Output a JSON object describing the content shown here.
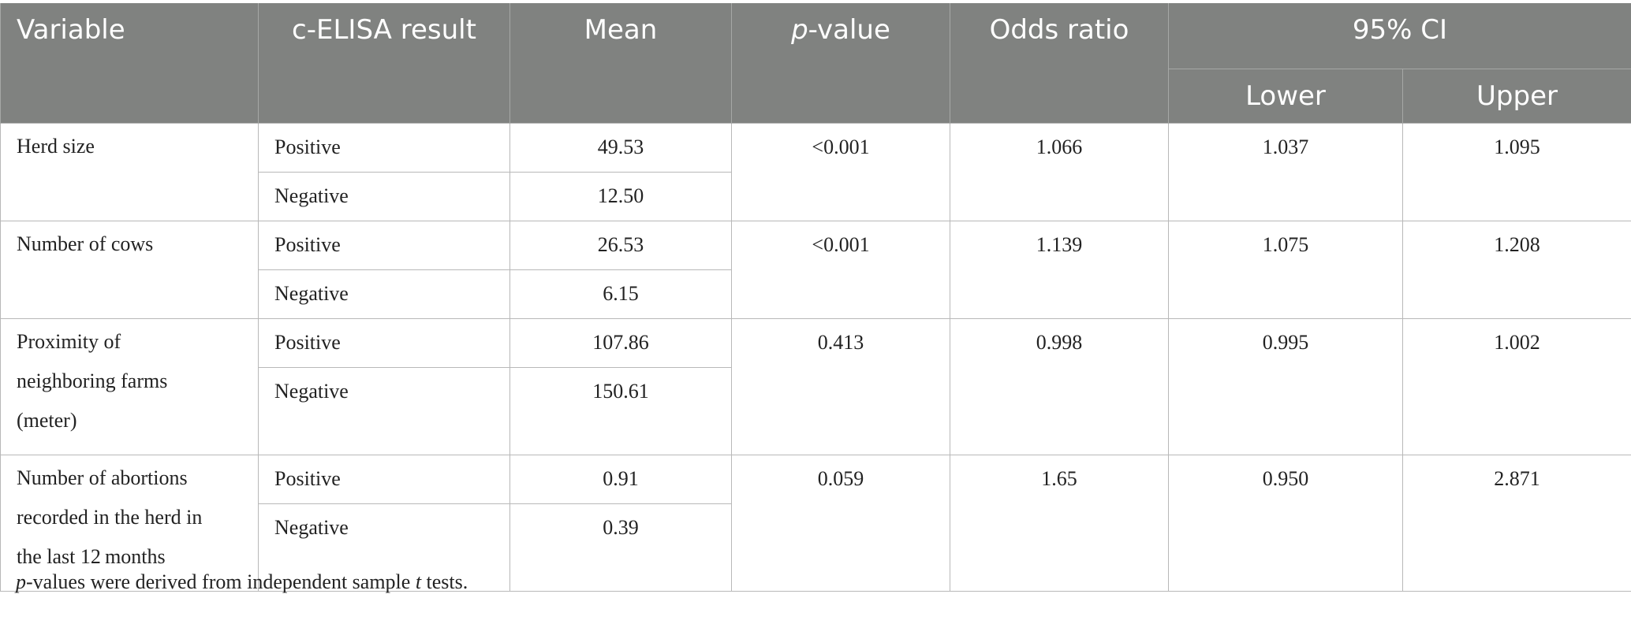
{
  "header": {
    "variable": "Variable",
    "result": "c-ELISA result",
    "mean": "Mean",
    "pvalue_italic": "p",
    "pvalue_rest": "-value",
    "odds": "Odds ratio",
    "ci": "95% CI",
    "lower": "Lower",
    "upper": "Upper"
  },
  "rows": [
    {
      "variable": [
        "Herd size"
      ],
      "positive_label": "Positive",
      "positive_mean": "49.53",
      "negative_label": "Negative",
      "negative_mean": "12.50",
      "pvalue": "<0.001",
      "odds": "1.066",
      "lower": "1.037",
      "upper": "1.095"
    },
    {
      "variable": [
        "Number of cows"
      ],
      "positive_label": "Positive",
      "positive_mean": "26.53",
      "negative_label": "Negative",
      "negative_mean": "6.15",
      "pvalue": "<0.001",
      "odds": "1.139",
      "lower": "1.075",
      "upper": "1.208"
    },
    {
      "variable": [
        "Proximity of",
        "neighboring farms",
        "(meter)"
      ],
      "positive_label": "Positive",
      "positive_mean": "107.86",
      "negative_label": "Negative",
      "negative_mean": "150.61",
      "pvalue": "0.413",
      "odds": "0.998",
      "lower": "0.995",
      "upper": "1.002"
    },
    {
      "variable": [
        "Number of abortions",
        "recorded in the herd in",
        "the last 12 months"
      ],
      "positive_label": "Positive",
      "positive_mean": "0.91",
      "negative_label": "Negative",
      "negative_mean": "0.39",
      "pvalue": "0.059",
      "odds": "1.65",
      "lower": "0.950",
      "upper": "2.871"
    }
  ],
  "footnote": {
    "p": "p",
    "mid": "-values were derived from independent sample ",
    "t": "t",
    "end": " tests."
  }
}
